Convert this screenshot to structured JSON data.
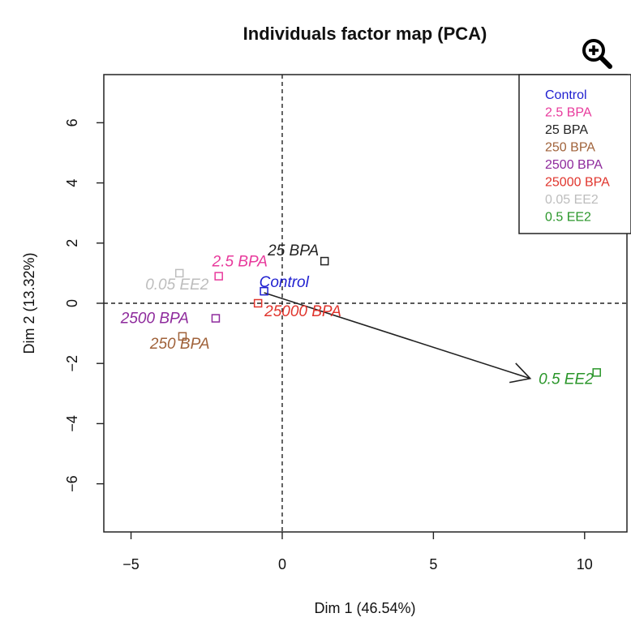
{
  "chart_data": {
    "type": "scatter",
    "title": "Individuals factor map (PCA)",
    "xlabel": "Dim 1 (46.54%)",
    "ylabel": "Dim 2 (13.32%)",
    "xlim": [
      -5.9,
      11.4
    ],
    "ylim": [
      -7.6,
      7.6
    ],
    "xticks": [
      -5,
      0,
      5,
      10
    ],
    "yticks": [
      -6,
      -4,
      -2,
      0,
      2,
      4,
      6
    ],
    "xtick_labels": [
      "−5",
      "0",
      "5",
      "10"
    ],
    "ytick_labels": [
      "−6",
      "−4",
      "−2",
      "0",
      "2",
      "4",
      "6"
    ],
    "reference_lines": {
      "x": 0,
      "y": 0,
      "style": "dashed"
    },
    "legend_position": "top-right",
    "points": [
      {
        "label": "Control",
        "x": -0.6,
        "y": 0.4,
        "color": "#1f1fd0"
      },
      {
        "label": "2.5 BPA",
        "x": -2.1,
        "y": 0.9,
        "color": "#e83a9c"
      },
      {
        "label": "25 BPA",
        "x": 1.4,
        "y": 1.4,
        "color": "#222222"
      },
      {
        "label": "250 BPA",
        "x": -3.3,
        "y": -1.1,
        "color": "#a0623a"
      },
      {
        "label": "2500 BPA",
        "x": -2.2,
        "y": -0.5,
        "color": "#8e2a9c"
      },
      {
        "label": "25000 BPA",
        "x": -0.8,
        "y": 0.0,
        "color": "#e0352d"
      },
      {
        "label": "0.05 EE2",
        "x": -3.4,
        "y": 1.0,
        "color": "#bdbdbd"
      },
      {
        "label": "0.5 EE2",
        "x": 10.4,
        "y": -2.3,
        "color": "#2a962a"
      }
    ],
    "arrow": {
      "from": [
        -0.6,
        0.35
      ],
      "to": [
        8.2,
        -2.5
      ]
    }
  },
  "icons": {
    "zoom": "zoom-in-icon"
  }
}
